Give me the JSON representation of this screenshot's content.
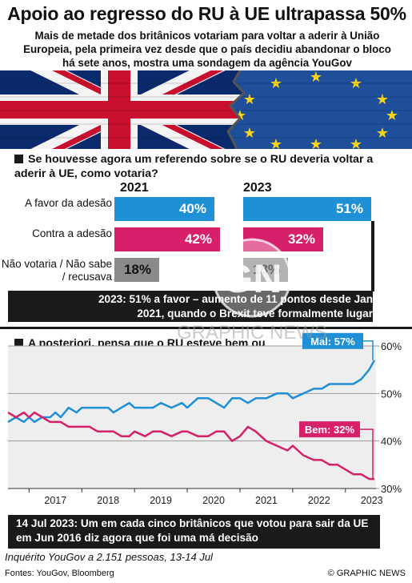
{
  "title": "Apoio ao regresso do RU à UE ultrapassa 50%",
  "subtitle": "Mais de metade dos britânicos votariam para voltar a aderir à União Europeia, pela primeira vez desde que o país decidiu abandonar o bloco há sete anos, mostra uma sondagem da agência YouGov",
  "colors": {
    "blue": "#1f8fd6",
    "pink": "#d6206a",
    "grey": "#8a8a8a",
    "dark": "#1a1a1a",
    "eu": "#1f4e9b",
    "uk_red": "#c8102e",
    "uk_blue": "#0b2a6b"
  },
  "watermark": {
    "logo": "GN",
    "text": "GRAPHIC NEWS"
  },
  "question1": "Se houvesse agora um referendo sobre se o RU deveria voltar a aderir à UE, como votaria?",
  "note1": "2023: 51% a favor – aumento de 11 pontos desde Jan 2021, quando o Brexit teve formalmente lugar",
  "question2": "A posteriori, pensa que o RU esteve bem ou mal ao votar para sair da UE?",
  "note2": "14 Jul 2023: Um em cada cinco britânicos que votou para sair da UE em Jun 2016 diz agora que foi uma má decisão",
  "survey": "Inquérito YouGov a 2.151 pessoas, 13-14 Jul",
  "sources": "Fontes: YouGov, Bloomberg",
  "credit": "© GRAPHIC NEWS",
  "chart_data": [
    {
      "type": "bar",
      "years": [
        "2021",
        "2023"
      ],
      "categories": [
        "A favor da adesão",
        "Contra a adesão",
        "Não votaria / Não sabe / recusava"
      ],
      "series": [
        {
          "name": "2021",
          "values": [
            40,
            42,
            18
          ],
          "labels": [
            "40%",
            "42%",
            "18%"
          ]
        },
        {
          "name": "2023",
          "values": [
            51,
            32,
            18
          ],
          "labels": [
            "51%",
            "32%",
            "18%"
          ]
        }
      ],
      "xlim": [
        0,
        51
      ]
    },
    {
      "type": "line",
      "x_ticks": [
        "2017",
        "2018",
        "2019",
        "2020",
        "2021",
        "2022",
        "2023"
      ],
      "y_ticks": [
        "30%",
        "40%",
        "50%",
        "60%"
      ],
      "ylim": [
        30,
        60
      ],
      "xlim": [
        2016.6,
        2023.58
      ],
      "grid": true,
      "annotations": [
        {
          "text": "Mal: 57%",
          "series": "Mal"
        },
        {
          "text": "Bem: 32%",
          "series": "Bem"
        }
      ],
      "series": [
        {
          "name": "Mal",
          "x": [
            2016.6,
            2016.75,
            2016.9,
            2017.0,
            2017.1,
            2017.25,
            2017.4,
            2017.5,
            2017.6,
            2017.75,
            2017.9,
            2018.0,
            2018.15,
            2018.3,
            2018.5,
            2018.6,
            2018.75,
            2018.9,
            2019.0,
            2019.2,
            2019.35,
            2019.5,
            2019.7,
            2019.9,
            2020.0,
            2020.2,
            2020.4,
            2020.55,
            2020.7,
            2020.85,
            2021.0,
            2021.15,
            2021.3,
            2021.5,
            2021.7,
            2021.9,
            2022.0,
            2022.2,
            2022.4,
            2022.55,
            2022.7,
            2022.85,
            2023.0,
            2023.15,
            2023.3,
            2023.45,
            2023.55
          ],
          "y": [
            44,
            45,
            44,
            45,
            44,
            45,
            45,
            46,
            45,
            47,
            46,
            47,
            47,
            47,
            47,
            46,
            47,
            48,
            47,
            47,
            47,
            48,
            47,
            48,
            47,
            49,
            49,
            48,
            47,
            49,
            49,
            48,
            49,
            49,
            50,
            50,
            49,
            50,
            51,
            51,
            52,
            52,
            52,
            52,
            53,
            55,
            57
          ]
        },
        {
          "name": "Bem",
          "x": [
            2016.6,
            2016.75,
            2016.9,
            2017.0,
            2017.1,
            2017.25,
            2017.4,
            2017.5,
            2017.6,
            2017.75,
            2017.9,
            2018.0,
            2018.15,
            2018.3,
            2018.5,
            2018.6,
            2018.75,
            2018.9,
            2019.0,
            2019.2,
            2019.35,
            2019.5,
            2019.7,
            2019.9,
            2020.0,
            2020.2,
            2020.4,
            2020.55,
            2020.7,
            2020.85,
            2021.0,
            2021.15,
            2021.3,
            2021.5,
            2021.7,
            2021.9,
            2022.0,
            2022.2,
            2022.4,
            2022.55,
            2022.7,
            2022.85,
            2023.0,
            2023.15,
            2023.3,
            2023.45,
            2023.55
          ],
          "y": [
            46,
            45,
            46,
            45,
            46,
            45,
            44,
            44,
            44,
            43,
            43,
            43,
            43,
            42,
            42,
            42,
            41,
            41,
            42,
            41,
            42,
            42,
            41,
            42,
            42,
            41,
            41,
            42,
            42,
            40,
            41,
            43,
            42,
            40,
            39,
            38,
            39,
            37,
            36,
            36,
            35,
            35,
            34,
            33,
            33,
            32,
            32
          ]
        }
      ]
    }
  ]
}
